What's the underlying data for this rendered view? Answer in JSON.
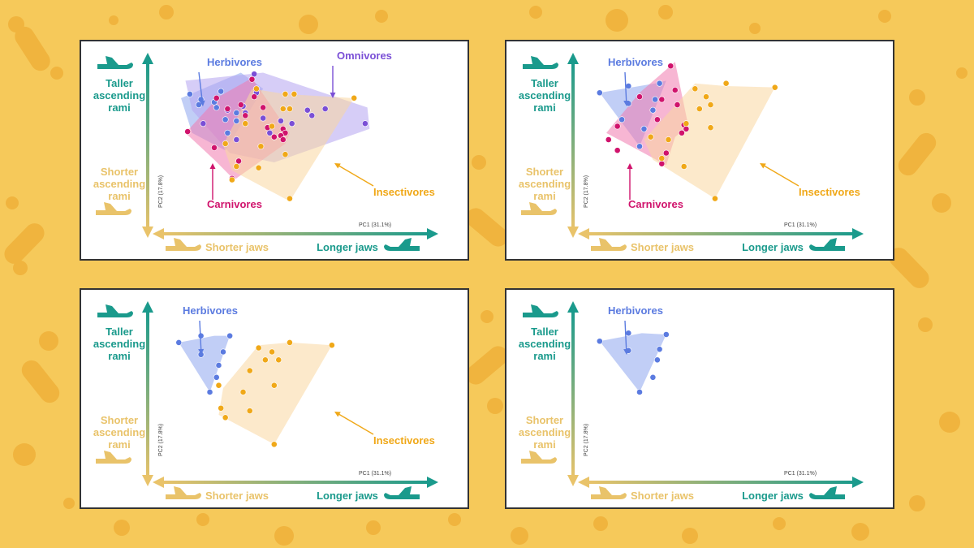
{
  "colors": {
    "background": "#F6C95A",
    "teal": "#1A9A8C",
    "sand": "#E9C36A",
    "herbivores": "#5B7BE0",
    "omnivores": "#7A4FD6",
    "carnivores": "#D0136C",
    "insectivores": "#F0A818",
    "herbivores_fill": "#8EA6EE",
    "omnivores_fill": "#B4A4F0",
    "carnivores_fill": "#F07AAE",
    "insectivores_fill": "#FAD7A0"
  },
  "axes": {
    "top_label": "Taller ascending rami",
    "bottom_label": "Shorter ascending rami",
    "left_label": "Shorter jaws",
    "right_label": "Longer jaws",
    "pc1": "PC1 (31.1%)",
    "pc2": "PC2 (17.8%)",
    "icon_top": "jaw-icon",
    "icon_bottom": "jaw-icon",
    "icon_left": "jaw-icon",
    "icon_right": "jaw-icon"
  },
  "chart_data": [
    {
      "type": "scatter",
      "title": "",
      "xlabel": "PC1 (31.1%)",
      "ylabel": "PC2 (17.8%)",
      "xlim": [
        -0.1,
        1.1
      ],
      "ylim": [
        -0.1,
        1.1
      ],
      "series": [
        {
          "name": "Herbivores",
          "key": "herbivores",
          "label": "Herbivores",
          "hull": [
            [
              0.05,
              0.81
            ],
            [
              0.32,
              1.0
            ],
            [
              0.42,
              0.88
            ],
            [
              0.25,
              0.42
            ],
            [
              0.1,
              0.55
            ]
          ],
          "points": [
            [
              0.09,
              0.84
            ],
            [
              0.2,
              0.78
            ],
            [
              0.21,
              0.74
            ],
            [
              0.25,
              0.65
            ],
            [
              0.3,
              0.64
            ],
            [
              0.26,
              0.55
            ],
            [
              0.3,
              0.7
            ],
            [
              0.23,
              0.86
            ],
            [
              0.13,
              0.76
            ],
            [
              0.14,
              0.8
            ]
          ]
        },
        {
          "name": "Omnivores",
          "key": "omnivores",
          "label": "Omnivores",
          "hull": [
            [
              0.07,
              0.94
            ],
            [
              0.42,
              1.0
            ],
            [
              0.89,
              0.74
            ],
            [
              0.9,
              0.58
            ],
            [
              0.47,
              0.33
            ],
            [
              0.27,
              0.4
            ],
            [
              0.1,
              0.72
            ]
          ],
          "points": [
            [
              0.38,
              0.99
            ],
            [
              0.39,
              0.85
            ],
            [
              0.34,
              0.7
            ],
            [
              0.45,
              0.55
            ],
            [
              0.42,
              0.66
            ],
            [
              0.5,
              0.64
            ],
            [
              0.62,
              0.72
            ],
            [
              0.64,
              0.68
            ],
            [
              0.15,
              0.62
            ],
            [
              0.3,
              0.5
            ],
            [
              0.55,
              0.62
            ],
            [
              0.7,
              0.73
            ],
            [
              0.88,
              0.62
            ],
            [
              0.26,
              0.72
            ],
            [
              0.33,
              0.75
            ]
          ]
        },
        {
          "name": "Carnivores",
          "key": "carnivores",
          "label": "Carnivores",
          "hull": [
            [
              0.07,
              0.55
            ],
            [
              0.22,
              0.82
            ],
            [
              0.37,
              0.96
            ],
            [
              0.54,
              0.55
            ],
            [
              0.52,
              0.47
            ],
            [
              0.29,
              0.2
            ],
            [
              0.2,
              0.35
            ]
          ],
          "points": [
            [
              0.08,
              0.56
            ],
            [
              0.21,
              0.81
            ],
            [
              0.26,
              0.73
            ],
            [
              0.32,
              0.76
            ],
            [
              0.34,
              0.68
            ],
            [
              0.37,
              0.95
            ],
            [
              0.38,
              0.82
            ],
            [
              0.42,
              0.74
            ],
            [
              0.44,
              0.59
            ],
            [
              0.51,
              0.58
            ],
            [
              0.52,
              0.55
            ],
            [
              0.5,
              0.53
            ],
            [
              0.51,
              0.5
            ],
            [
              0.47,
              0.52
            ],
            [
              0.31,
              0.34
            ],
            [
              0.28,
              0.21
            ],
            [
              0.2,
              0.44
            ]
          ]
        },
        {
          "name": "Insectivores",
          "key": "insectivores",
          "label": "Insectivores",
          "hull": [
            [
              0.24,
              0.46
            ],
            [
              0.37,
              0.88
            ],
            [
              0.52,
              0.84
            ],
            [
              0.83,
              0.81
            ],
            [
              0.54,
              0.04
            ],
            [
              0.28,
              0.27
            ]
          ],
          "points": [
            [
              0.25,
              0.47
            ],
            [
              0.39,
              0.88
            ],
            [
              0.52,
              0.84
            ],
            [
              0.83,
              0.81
            ],
            [
              0.56,
              0.84
            ],
            [
              0.51,
              0.73
            ],
            [
              0.54,
              0.73
            ],
            [
              0.34,
              0.62
            ],
            [
              0.46,
              0.6
            ],
            [
              0.41,
              0.45
            ],
            [
              0.52,
              0.39
            ],
            [
              0.4,
              0.29
            ],
            [
              0.3,
              0.3
            ],
            [
              0.54,
              0.06
            ],
            [
              0.28,
              0.2
            ]
          ]
        }
      ]
    },
    {
      "type": "scatter",
      "title": "",
      "xlabel": "PC1 (31.1%)",
      "ylabel": "PC2 (17.8%)",
      "xlim": [
        -0.1,
        1.1
      ],
      "ylim": [
        -0.1,
        1.1
      ],
      "series": [
        {
          "name": "Herbivores",
          "key": "herbivores",
          "label": "Herbivores",
          "hull": [
            [
              0.02,
              0.85
            ],
            [
              0.27,
              0.92
            ],
            [
              0.32,
              0.94
            ],
            [
              0.2,
              0.45
            ]
          ],
          "points": [
            [
              0.02,
              0.85
            ],
            [
              0.15,
              0.9
            ],
            [
              0.29,
              0.92
            ],
            [
              0.15,
              0.77
            ],
            [
              0.27,
              0.8
            ],
            [
              0.26,
              0.72
            ],
            [
              0.22,
              0.58
            ],
            [
              0.2,
              0.45
            ],
            [
              0.12,
              0.65
            ]
          ]
        },
        {
          "name": "Carnivores",
          "key": "carnivores",
          "label": "Carnivores",
          "hull": [
            [
              0.05,
              0.55
            ],
            [
              0.2,
              0.85
            ],
            [
              0.36,
              1.08
            ],
            [
              0.42,
              0.6
            ],
            [
              0.36,
              0.52
            ],
            [
              0.32,
              0.31
            ]
          ],
          "points": [
            [
              0.06,
              0.5
            ],
            [
              0.1,
              0.6
            ],
            [
              0.2,
              0.82
            ],
            [
              0.3,
              0.8
            ],
            [
              0.36,
              0.87
            ],
            [
              0.37,
              0.76
            ],
            [
              0.28,
              0.65
            ],
            [
              0.4,
              0.61
            ],
            [
              0.41,
              0.58
            ],
            [
              0.39,
              0.55
            ],
            [
              0.3,
              0.32
            ],
            [
              0.32,
              0.4
            ],
            [
              0.1,
              0.42
            ],
            [
              0.34,
              1.05
            ]
          ]
        },
        {
          "name": "Insectivores",
          "key": "insectivores",
          "label": "Insectivores",
          "hull": [
            [
              0.22,
              0.5
            ],
            [
              0.45,
              0.92
            ],
            [
              0.59,
              0.9
            ],
            [
              0.81,
              0.89
            ],
            [
              0.54,
              0.06
            ],
            [
              0.26,
              0.35
            ]
          ],
          "points": [
            [
              0.25,
              0.52
            ],
            [
              0.45,
              0.88
            ],
            [
              0.59,
              0.92
            ],
            [
              0.81,
              0.89
            ],
            [
              0.5,
              0.82
            ],
            [
              0.52,
              0.76
            ],
            [
              0.47,
              0.73
            ],
            [
              0.41,
              0.62
            ],
            [
              0.52,
              0.59
            ],
            [
              0.33,
              0.5
            ],
            [
              0.3,
              0.36
            ],
            [
              0.4,
              0.3
            ],
            [
              0.54,
              0.06
            ]
          ]
        }
      ]
    },
    {
      "type": "scatter",
      "title": "",
      "xlabel": "PC1 (31.1%)",
      "ylabel": "PC2 (17.8%)",
      "xlim": [
        -0.1,
        1.1
      ],
      "ylim": [
        -0.1,
        1.1
      ],
      "series": [
        {
          "name": "Herbivores",
          "key": "herbivores",
          "label": "Herbivores",
          "hull": [
            [
              0.04,
              0.84
            ],
            [
              0.2,
              0.89
            ],
            [
              0.27,
              0.89
            ],
            [
              0.18,
              0.47
            ]
          ],
          "points": [
            [
              0.04,
              0.84
            ],
            [
              0.14,
              0.89
            ],
            [
              0.27,
              0.89
            ],
            [
              0.14,
              0.75
            ],
            [
              0.24,
              0.77
            ],
            [
              0.22,
              0.67
            ],
            [
              0.21,
              0.58
            ],
            [
              0.18,
              0.47
            ]
          ]
        },
        {
          "name": "Insectivores",
          "key": "insectivores",
          "label": "Insectivores",
          "hull": [
            [
              0.24,
              0.5
            ],
            [
              0.4,
              0.82
            ],
            [
              0.54,
              0.84
            ],
            [
              0.73,
              0.82
            ],
            [
              0.47,
              0.08
            ],
            [
              0.22,
              0.3
            ]
          ],
          "points": [
            [
              0.22,
              0.52
            ],
            [
              0.4,
              0.8
            ],
            [
              0.54,
              0.84
            ],
            [
              0.73,
              0.82
            ],
            [
              0.46,
              0.77
            ],
            [
              0.49,
              0.71
            ],
            [
              0.43,
              0.71
            ],
            [
              0.36,
              0.63
            ],
            [
              0.47,
              0.52
            ],
            [
              0.33,
              0.47
            ],
            [
              0.23,
              0.35
            ],
            [
              0.36,
              0.33
            ],
            [
              0.47,
              0.08
            ],
            [
              0.25,
              0.28
            ]
          ]
        }
      ]
    },
    {
      "type": "scatter",
      "title": "",
      "xlabel": "PC1 (31.1%)",
      "ylabel": "PC2 (17.8%)",
      "xlim": [
        -0.1,
        1.1
      ],
      "ylim": [
        -0.1,
        1.1
      ],
      "series": [
        {
          "name": "Herbivores",
          "key": "herbivores",
          "label": "Herbivores",
          "hull": [
            [
              0.02,
              0.85
            ],
            [
              0.21,
              0.91
            ],
            [
              0.32,
              0.9
            ],
            [
              0.2,
              0.47
            ]
          ],
          "points": [
            [
              0.02,
              0.85
            ],
            [
              0.15,
              0.91
            ],
            [
              0.32,
              0.9
            ],
            [
              0.15,
              0.78
            ],
            [
              0.29,
              0.79
            ],
            [
              0.28,
              0.71
            ],
            [
              0.26,
              0.58
            ],
            [
              0.2,
              0.47
            ]
          ]
        }
      ]
    }
  ]
}
